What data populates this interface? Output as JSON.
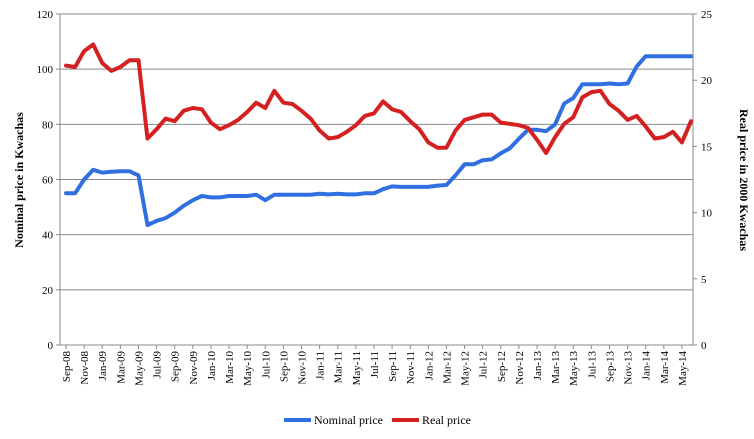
{
  "chart_data": {
    "type": "line",
    "title": "",
    "ylabel_left": "Nominal price in Kwachas",
    "ylabel_right": "Real price in 2000 Kwachas",
    "ylim_left": [
      0,
      120
    ],
    "ylim_right": [
      0,
      25
    ],
    "yticks_left": [
      "0",
      "20",
      "40",
      "60",
      "80",
      "100",
      "120"
    ],
    "yticks_right": [
      "0",
      "5",
      "10",
      "15",
      "20",
      "25"
    ],
    "grid": "horizontal",
    "legend_position": "bottom",
    "x_tick_labels": [
      "Sep-08",
      "Nov-08",
      "Jan-09",
      "Mar-09",
      "May-09",
      "Jul-09",
      "Sep-09",
      "Nov-09",
      "Jan-10",
      "Mar-10",
      "May-10",
      "Jul-10",
      "Sep-10",
      "Nov-10",
      "Jan-11",
      "Mar-11",
      "May-11",
      "Jul-11",
      "Sep-11",
      "Nov-11",
      "Jan-12",
      "Mar-12",
      "May-12",
      "Jul-12",
      "Sep-12",
      "Nov-12",
      "Jan-13",
      "Mar-13",
      "May-13",
      "Jul-13",
      "Sep-13",
      "Nov-13",
      "Jan-14",
      "Mar-14",
      "May-14"
    ],
    "x": [
      "Sep-08",
      "Oct-08",
      "Nov-08",
      "Dec-08",
      "Jan-09",
      "Feb-09",
      "Mar-09",
      "Apr-09",
      "May-09",
      "Jun-09",
      "Jul-09",
      "Aug-09",
      "Sep-09",
      "Oct-09",
      "Nov-09",
      "Dec-09",
      "Jan-10",
      "Feb-10",
      "Mar-10",
      "Apr-10",
      "May-10",
      "Jun-10",
      "Jul-10",
      "Aug-10",
      "Sep-10",
      "Oct-10",
      "Nov-10",
      "Dec-10",
      "Jan-11",
      "Feb-11",
      "Mar-11",
      "Apr-11",
      "May-11",
      "Jun-11",
      "Jul-11",
      "Aug-11",
      "Sep-11",
      "Oct-11",
      "Nov-11",
      "Dec-11",
      "Jan-12",
      "Feb-12",
      "Mar-12",
      "Apr-12",
      "May-12",
      "Jun-12",
      "Jul-12",
      "Aug-12",
      "Sep-12",
      "Oct-12",
      "Nov-12",
      "Dec-12",
      "Jan-13",
      "Feb-13",
      "Mar-13",
      "Apr-13",
      "May-13",
      "Jun-13",
      "Jul-13",
      "Aug-13",
      "Sep-13",
      "Oct-13",
      "Nov-13",
      "Dec-13",
      "Jan-14",
      "Feb-14",
      "Mar-14",
      "Apr-14",
      "May-14",
      "Jun-14"
    ],
    "series": [
      {
        "name": "Nominal price",
        "axis": "left",
        "color": "#2f6fe0",
        "values": [
          55,
          55,
          60,
          63.5,
          62.5,
          62.8,
          63,
          63,
          61.5,
          43.5,
          45,
          46,
          48,
          50.5,
          52.5,
          54,
          53.5,
          53.5,
          54,
          54,
          54,
          54.5,
          52.5,
          54.5,
          54.5,
          54.5,
          54.5,
          54.5,
          54.8,
          54.6,
          54.8,
          54.6,
          54.6,
          55,
          55,
          56.5,
          57.5,
          57.3,
          57.3,
          57.3,
          57.3,
          57.8,
          58,
          61.5,
          65.5,
          65.5,
          67,
          67.3,
          69.5,
          71.3,
          74.8,
          78,
          78,
          77.5,
          80,
          87.5,
          89.5,
          94.5,
          94.5,
          94.5,
          94.8,
          94.5,
          94.8,
          101,
          104.7,
          104.7,
          104.7,
          104.7,
          104.7,
          104.7
        ]
      },
      {
        "name": "Real price",
        "axis": "right",
        "color": "#d42020",
        "values": [
          21.1,
          21,
          22.2,
          22.7,
          21.3,
          20.7,
          21,
          21.5,
          21.5,
          15.6,
          16.3,
          17.1,
          16.9,
          17.7,
          17.9,
          17.8,
          16.8,
          16.3,
          16.6,
          17,
          17.6,
          18.3,
          17.9,
          19.2,
          18.3,
          18.2,
          17.7,
          17.1,
          16.2,
          15.6,
          15.7,
          16.1,
          16.6,
          17.3,
          17.5,
          18.4,
          17.8,
          17.6,
          16.9,
          16.3,
          15.3,
          14.9,
          14.9,
          16.2,
          17,
          17.2,
          17.4,
          17.4,
          16.8,
          16.7,
          16.6,
          16.4,
          15.5,
          14.5,
          15.7,
          16.7,
          17.2,
          18.7,
          19.1,
          19.2,
          18.2,
          17.7,
          17,
          17.3,
          16.5,
          15.6,
          15.7,
          16.1,
          15.3,
          16.9
        ]
      }
    ]
  }
}
